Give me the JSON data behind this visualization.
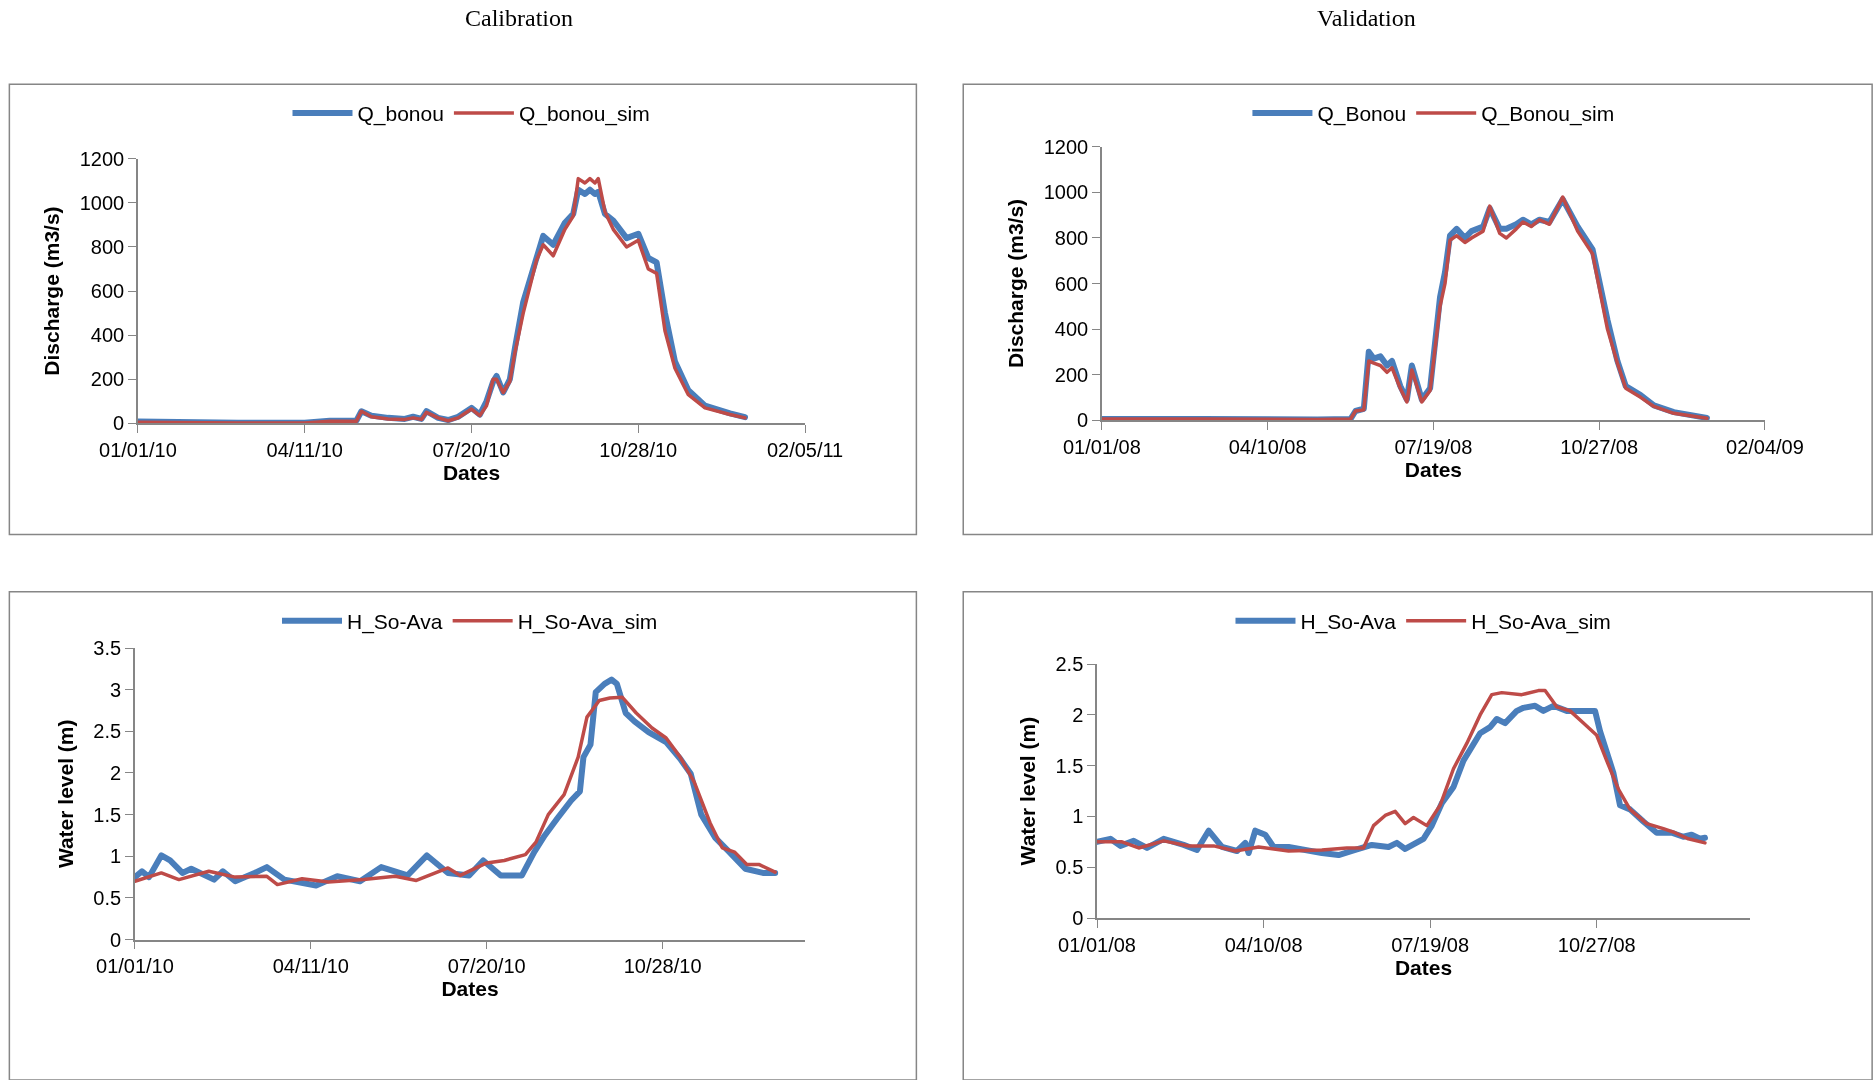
{
  "chart_data": [
    {
      "type": "line",
      "title": "Calibration",
      "xlabel": "Dates",
      "ylabel": "Discharge (m3/s)",
      "legend": "top",
      "marker": "none",
      "line_style": "solid",
      "xlim": [
        "2010-01-01",
        "2011-02-05"
      ],
      "xticks": [
        {
          "value": "2010-01-01",
          "label": "01/01/10"
        },
        {
          "value": "2010-04-11",
          "label": "04/11/10"
        },
        {
          "value": "2010-07-20",
          "label": "07/20/10"
        },
        {
          "value": "2010-10-28",
          "label": "10/28/10"
        },
        {
          "value": "2011-02-05",
          "label": "02/05/11"
        }
      ],
      "ylim": [
        0,
        1200
      ],
      "yticks": [
        0,
        200,
        400,
        600,
        800,
        1000,
        1200
      ],
      "x": [
        "2010-01-01",
        "2010-03-02",
        "2010-04-11",
        "2010-04-26",
        "2010-05-12",
        "2010-05-15",
        "2010-05-21",
        "2010-05-31",
        "2010-06-10",
        "2010-06-15",
        "2010-06-20",
        "2010-06-23",
        "2010-06-30",
        "2010-07-06",
        "2010-07-12",
        "2010-07-20",
        "2010-07-25",
        "2010-07-29",
        "2010-08-02",
        "2010-08-04",
        "2010-08-08",
        "2010-08-12",
        "2010-08-15",
        "2010-08-20",
        "2010-08-28",
        "2010-09-01",
        "2010-09-07",
        "2010-09-14",
        "2010-09-19",
        "2010-09-22",
        "2010-09-26",
        "2010-09-29",
        "2010-10-02",
        "2010-10-04",
        "2010-10-08",
        "2010-10-13",
        "2010-10-21",
        "2010-10-28",
        "2010-11-03",
        "2010-11-08",
        "2010-11-13",
        "2010-11-19",
        "2010-11-27",
        "2010-12-07",
        "2010-12-22",
        "2010-12-31"
      ],
      "series": [
        {
          "name": "Q_bonou",
          "color": "#4a7ebb",
          "values": [
            8,
            3,
            3,
            12,
            12,
            55,
            35,
            25,
            20,
            30,
            20,
            55,
            25,
            15,
            30,
            70,
            40,
            100,
            190,
            215,
            140,
            200,
            340,
            550,
            750,
            850,
            810,
            910,
            950,
            1060,
            1040,
            1060,
            1040,
            1050,
            950,
            920,
            840,
            860,
            750,
            730,
            500,
            280,
            150,
            80,
            45,
            28
          ]
        },
        {
          "name": "Q_bonou_sim",
          "color": "#be4b48",
          "values": [
            5,
            2,
            2,
            10,
            10,
            55,
            30,
            20,
            18,
            25,
            18,
            50,
            25,
            12,
            25,
            65,
            35,
            80,
            200,
            200,
            140,
            190,
            320,
            500,
            740,
            810,
            760,
            880,
            940,
            1110,
            1090,
            1110,
            1090,
            1110,
            960,
            880,
            800,
            830,
            700,
            680,
            420,
            250,
            130,
            70,
            40,
            25
          ]
        }
      ]
    },
    {
      "type": "line",
      "title": "Validation",
      "xlabel": "Dates",
      "ylabel": "Discharge (m3/s)",
      "legend": "top",
      "marker": "none",
      "line_style": "solid",
      "xlim": [
        "2008-01-01",
        "2009-02-04"
      ],
      "xticks": [
        {
          "value": "2008-01-01",
          "label": "01/01/08"
        },
        {
          "value": "2008-04-10",
          "label": "04/10/08"
        },
        {
          "value": "2008-07-19",
          "label": "07/19/08"
        },
        {
          "value": "2008-10-27",
          "label": "10/27/08"
        },
        {
          "value": "2009-02-04",
          "label": "02/04/09"
        }
      ],
      "ylim": [
        0,
        1200
      ],
      "yticks": [
        0,
        200,
        400,
        600,
        800,
        1000,
        1200
      ],
      "x": [
        "2008-01-01",
        "2008-03-01",
        "2008-05-10",
        "2008-05-30",
        "2008-06-02",
        "2008-06-07",
        "2008-06-10",
        "2008-06-13",
        "2008-06-17",
        "2008-06-21",
        "2008-06-24",
        "2008-06-29",
        "2008-07-03",
        "2008-07-06",
        "2008-07-12",
        "2008-07-17",
        "2008-07-23",
        "2008-07-26",
        "2008-07-29",
        "2008-08-02",
        "2008-08-07",
        "2008-08-11",
        "2008-08-18",
        "2008-08-22",
        "2008-08-28",
        "2008-09-01",
        "2008-09-07",
        "2008-09-11",
        "2008-09-16",
        "2008-09-21",
        "2008-09-27",
        "2008-10-05",
        "2008-10-14",
        "2008-10-23",
        "2008-11-01",
        "2008-11-07",
        "2008-11-12",
        "2008-11-21",
        "2008-11-29",
        "2008-12-11",
        "2008-12-31"
      ],
      "series": [
        {
          "name": "Q_Bonou",
          "color": "#4a7ebb",
          "values": [
            5,
            5,
            3,
            5,
            40,
            50,
            300,
            270,
            280,
            240,
            260,
            150,
            90,
            240,
            90,
            140,
            540,
            650,
            810,
            840,
            800,
            830,
            850,
            930,
            840,
            840,
            860,
            880,
            860,
            880,
            870,
            970,
            850,
            750,
            440,
            260,
            150,
            110,
            65,
            35,
            10
          ]
        },
        {
          "name": "Q_Bonou_sim",
          "color": "#be4b48",
          "values": [
            5,
            5,
            3,
            5,
            40,
            45,
            260,
            250,
            240,
            210,
            230,
            140,
            80,
            220,
            80,
            130,
            500,
            600,
            790,
            810,
            780,
            800,
            830,
            940,
            820,
            800,
            840,
            870,
            850,
            880,
            860,
            980,
            830,
            730,
            400,
            250,
            140,
            100,
            60,
            30,
            8
          ]
        }
      ]
    },
    {
      "type": "line",
      "xlabel": "Dates",
      "ylabel": "Water level (m)",
      "legend": "top",
      "marker": "none",
      "line_style": "solid",
      "xlim": [
        "2010-01-01",
        "2011-01-17"
      ],
      "xticks": [
        {
          "value": "2010-01-01",
          "label": "01/01/10"
        },
        {
          "value": "2010-04-11",
          "label": "04/11/10"
        },
        {
          "value": "2010-07-20",
          "label": "07/20/10"
        },
        {
          "value": "2010-10-28",
          "label": "10/28/10"
        }
      ],
      "ylim": [
        0,
        3.5
      ],
      "yticks": [
        0,
        0.5,
        1,
        1.5,
        2,
        2.5,
        3,
        3.5
      ],
      "series": [
        {
          "name": "H_So-Ava",
          "color": "#4a7ebb",
          "x": [
            "2010-01-01",
            "2010-01-05",
            "2010-01-09",
            "2010-01-16",
            "2010-01-21",
            "2010-01-28",
            "2010-02-02",
            "2010-02-15",
            "2010-02-20",
            "2010-02-27",
            "2010-03-10",
            "2010-03-17",
            "2010-03-27",
            "2010-04-14",
            "2010-04-26",
            "2010-05-09",
            "2010-05-21",
            "2010-06-05",
            "2010-06-16",
            "2010-06-28",
            "2010-07-10",
            "2010-07-18",
            "2010-07-28",
            "2010-08-09",
            "2010-08-16",
            "2010-08-22",
            "2010-08-29",
            "2010-09-06",
            "2010-09-11",
            "2010-09-13",
            "2010-09-17",
            "2010-09-20",
            "2010-09-25",
            "2010-09-29",
            "2010-10-02",
            "2010-10-07",
            "2010-10-12",
            "2010-10-20",
            "2010-10-30",
            "2010-11-07",
            "2010-11-13",
            "2010-11-19",
            "2010-11-27",
            "2010-12-05",
            "2010-12-14",
            "2010-12-24",
            "2010-12-31"
          ],
          "values": [
            0.75,
            0.82,
            0.75,
            1.01,
            0.95,
            0.8,
            0.85,
            0.72,
            0.82,
            0.7,
            0.8,
            0.87,
            0.72,
            0.65,
            0.76,
            0.7,
            0.87,
            0.77,
            1.01,
            0.8,
            0.77,
            0.95,
            0.77,
            0.77,
            1.05,
            1.25,
            1.45,
            1.67,
            1.78,
            2.19,
            2.34,
            2.97,
            3.07,
            3.12,
            3.07,
            2.72,
            2.62,
            2.49,
            2.37,
            2.17,
            1.99,
            1.5,
            1.22,
            1.05,
            0.85,
            0.8,
            0.8
          ]
        },
        {
          "name": "H_So-Ava_sim",
          "color": "#be4b48",
          "x": [
            "2010-01-01",
            "2010-01-16",
            "2010-01-26",
            "2010-02-12",
            "2010-02-27",
            "2010-03-17",
            "2010-03-23",
            "2010-04-06",
            "2010-04-21",
            "2010-05-11",
            "2010-05-29",
            "2010-06-10",
            "2010-06-28",
            "2010-07-05",
            "2010-07-20",
            "2010-07-30",
            "2010-08-11",
            "2010-08-17",
            "2010-08-24",
            "2010-09-02",
            "2010-09-10",
            "2010-09-15",
            "2010-09-22",
            "2010-09-28",
            "2010-10-05",
            "2010-10-13",
            "2010-10-22",
            "2010-10-30",
            "2010-11-07",
            "2010-11-15",
            "2010-11-24",
            "2010-12-01",
            "2010-12-08",
            "2010-12-15",
            "2010-12-22",
            "2010-12-31"
          ],
          "values": [
            0.7,
            0.8,
            0.72,
            0.82,
            0.75,
            0.76,
            0.66,
            0.73,
            0.69,
            0.72,
            0.76,
            0.71,
            0.86,
            0.77,
            0.92,
            0.95,
            1.02,
            1.17,
            1.5,
            1.74,
            2.19,
            2.67,
            2.87,
            2.9,
            2.91,
            2.72,
            2.54,
            2.42,
            2.19,
            1.89,
            1.4,
            1.1,
            1.05,
            0.9,
            0.9,
            0.81
          ]
        }
      ]
    },
    {
      "type": "line",
      "xlabel": "Dates",
      "ylabel": "Water level (m)",
      "legend": "top",
      "marker": "none",
      "line_style": "solid",
      "xlim": [
        "2008-01-01",
        "2009-01-27"
      ],
      "xticks": [
        {
          "value": "2008-01-01",
          "label": "01/01/08"
        },
        {
          "value": "2008-04-10",
          "label": "04/10/08"
        },
        {
          "value": "2008-07-19",
          "label": "07/19/08"
        },
        {
          "value": "2008-10-27",
          "label": "10/27/08"
        }
      ],
      "ylim": [
        0,
        2.5
      ],
      "yticks": [
        0,
        0.5,
        1,
        1.5,
        2,
        2.5
      ],
      "series": [
        {
          "name": "H_So-Ava",
          "color": "#4a7ebb",
          "x": [
            "2008-01-01",
            "2008-01-09",
            "2008-01-15",
            "2008-01-23",
            "2008-01-31",
            "2008-02-10",
            "2008-02-22",
            "2008-03-01",
            "2008-03-08",
            "2008-03-16",
            "2008-03-25",
            "2008-03-30",
            "2008-04-01",
            "2008-04-05",
            "2008-04-11",
            "2008-04-16",
            "2008-04-25",
            "2008-05-05",
            "2008-05-15",
            "2008-05-25",
            "2008-06-04",
            "2008-06-14",
            "2008-06-24",
            "2008-06-29",
            "2008-07-04",
            "2008-07-15",
            "2008-07-20",
            "2008-07-26",
            "2008-08-02",
            "2008-08-08",
            "2008-08-18",
            "2008-08-24",
            "2008-08-28",
            "2008-09-02",
            "2008-09-09",
            "2008-09-13",
            "2008-09-20",
            "2008-09-25",
            "2008-10-01",
            "2008-10-09",
            "2008-10-17",
            "2008-10-23",
            "2008-10-26",
            "2008-10-29",
            "2008-11-06",
            "2008-11-10",
            "2008-11-16",
            "2008-11-24",
            "2008-12-02",
            "2008-12-11",
            "2008-12-18",
            "2008-12-23",
            "2008-12-28",
            "2008-12-31"
          ],
          "values": [
            0.75,
            0.78,
            0.71,
            0.76,
            0.69,
            0.78,
            0.72,
            0.67,
            0.86,
            0.7,
            0.66,
            0.74,
            0.64,
            0.86,
            0.82,
            0.7,
            0.7,
            0.67,
            0.64,
            0.62,
            0.67,
            0.72,
            0.7,
            0.74,
            0.68,
            0.78,
            0.91,
            1.13,
            1.29,
            1.55,
            1.82,
            1.88,
            1.96,
            1.92,
            2.04,
            2.07,
            2.09,
            2.04,
            2.09,
            2.04,
            2.04,
            2.04,
            2.04,
            1.84,
            1.43,
            1.11,
            1.07,
            0.95,
            0.84,
            0.84,
            0.8,
            0.82,
            0.78,
            0.79
          ]
        },
        {
          "name": "H_So-Ava_sim",
          "color": "#be4b48",
          "x": [
            "2008-01-01",
            "2008-01-16",
            "2008-01-26",
            "2008-02-10",
            "2008-02-25",
            "2008-03-11",
            "2008-03-24",
            "2008-04-07",
            "2008-04-25",
            "2008-05-15",
            "2008-05-30",
            "2008-06-09",
            "2008-06-15",
            "2008-06-22",
            "2008-06-28",
            "2008-07-04",
            "2008-07-09",
            "2008-07-17",
            "2008-07-25",
            "2008-08-02",
            "2008-08-10",
            "2008-08-18",
            "2008-08-25",
            "2008-08-31",
            "2008-09-12",
            "2008-09-22",
            "2008-09-26",
            "2008-10-03",
            "2008-10-11",
            "2008-10-19",
            "2008-10-27",
            "2008-11-02",
            "2008-11-09",
            "2008-11-16",
            "2008-11-26",
            "2008-12-06",
            "2008-12-13",
            "2008-12-21",
            "2008-12-31"
          ],
          "values": [
            0.75,
            0.75,
            0.69,
            0.76,
            0.71,
            0.71,
            0.66,
            0.7,
            0.66,
            0.67,
            0.69,
            0.69,
            0.91,
            1.01,
            1.05,
            0.93,
            0.99,
            0.91,
            1.11,
            1.47,
            1.72,
            2.0,
            2.2,
            2.22,
            2.2,
            2.24,
            2.24,
            2.08,
            2.04,
            1.92,
            1.8,
            1.55,
            1.27,
            1.07,
            0.93,
            0.88,
            0.84,
            0.78,
            0.74
          ]
        }
      ]
    }
  ]
}
